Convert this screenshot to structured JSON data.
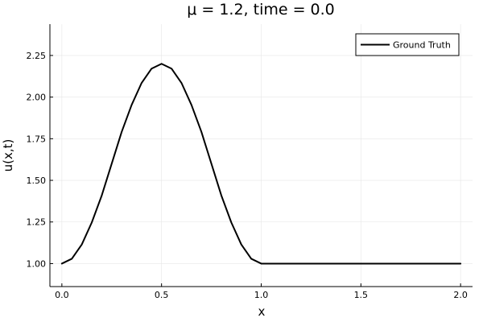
{
  "chart_data": {
    "type": "line",
    "title": "μ = 1.2, time = 0.0",
    "xlabel": "x",
    "ylabel": "u(x,t)",
    "xlim": [
      -0.06,
      2.06
    ],
    "ylim": [
      0.862,
      2.438
    ],
    "xticks": [
      0.0,
      0.5,
      1.0,
      1.5,
      2.0
    ],
    "xtick_labels": [
      "0.0",
      "0.5",
      "1.0",
      "1.5",
      "2.0"
    ],
    "yticks": [
      1.0,
      1.25,
      1.5,
      1.75,
      2.0,
      2.25
    ],
    "ytick_labels": [
      "1.00",
      "1.25",
      "1.50",
      "1.75",
      "2.00",
      "2.25"
    ],
    "grid": true,
    "legend_position": "top-right",
    "series": [
      {
        "name": "Ground Truth",
        "color": "#000000",
        "x": [
          0.0,
          0.05,
          0.1,
          0.15,
          0.2,
          0.25,
          0.3,
          0.35,
          0.4,
          0.45,
          0.5,
          0.55,
          0.6,
          0.65,
          0.7,
          0.75,
          0.8,
          0.85,
          0.9,
          0.95,
          1.0,
          1.25,
          1.5,
          1.75,
          2.0
        ],
        "y": [
          1.0,
          1.029,
          1.115,
          1.247,
          1.409,
          1.6,
          1.791,
          1.953,
          2.085,
          2.171,
          2.2,
          2.171,
          2.085,
          1.953,
          1.791,
          1.6,
          1.409,
          1.247,
          1.115,
          1.029,
          1.0,
          1.0,
          1.0,
          1.0,
          1.0
        ]
      }
    ]
  }
}
